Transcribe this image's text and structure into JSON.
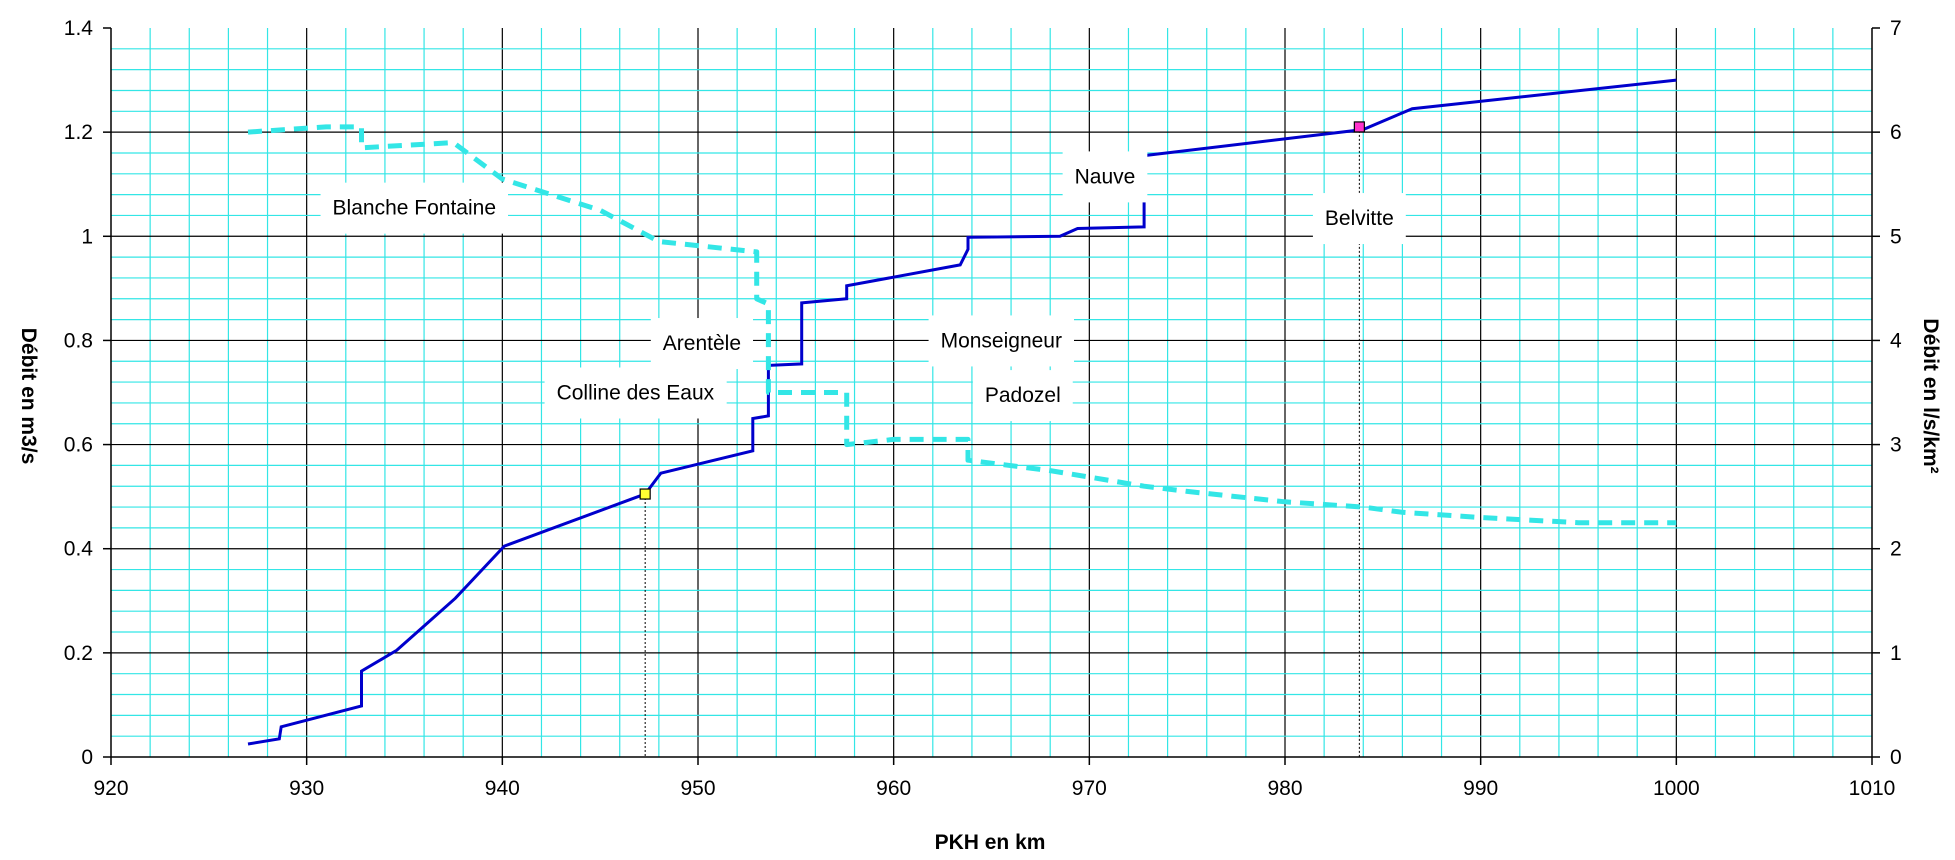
{
  "chart_data": {
    "type": "line",
    "xlabel": "PKH en km",
    "ylabel": "Débit en m3/s",
    "y2label": "Débit en l/s/km²",
    "xlim": [
      920,
      1010
    ],
    "ylim": [
      0,
      1.4
    ],
    "y2lim": [
      0,
      7
    ],
    "xticks": [
      "920",
      "930",
      "940",
      "950",
      "960",
      "970",
      "980",
      "990",
      "1000",
      "1010"
    ],
    "yticks": [
      "0",
      "0.2",
      "0.4",
      "0.6",
      "0.8",
      "1",
      "1.2",
      "1.4"
    ],
    "y2ticks": [
      "0",
      "1",
      "2",
      "3",
      "4",
      "5",
      "6",
      "7"
    ],
    "grid": true,
    "colors": {
      "flow": "#0000cc",
      "specific": "#33e6e6",
      "grid_minor": "#33e6e6",
      "grid_major": "#000000",
      "marker_yellow": "#ffff33",
      "marker_pink": "#ff33cc"
    },
    "series": [
      {
        "axis": "left",
        "style": "solid",
        "x": [
          927,
          928.6,
          928.7,
          932.8,
          932.8,
          934.6,
          937.6,
          940.1,
          947.3,
          948.1,
          952.8,
          952.8,
          953.6,
          953.6,
          955.3,
          955.3,
          957.6,
          957.6,
          963.4,
          963.8,
          963.8,
          968.5,
          969.4,
          972.8,
          972.8,
          984,
          986.5,
          1000
        ],
        "y": [
          0.025,
          0.035,
          0.058,
          0.098,
          0.165,
          0.205,
          0.305,
          0.405,
          0.505,
          0.545,
          0.588,
          0.65,
          0.655,
          0.752,
          0.755,
          0.872,
          0.88,
          0.905,
          0.945,
          0.975,
          0.998,
          1.0,
          1.015,
          1.018,
          1.155,
          1.205,
          1.245,
          1.3
        ]
      },
      {
        "axis": "right",
        "style": "dashed",
        "x": [
          927,
          931,
          932.8,
          932.8,
          937.5,
          940,
          945,
          948,
          953,
          953,
          953.6,
          953.6,
          955.5,
          957.6,
          957.6,
          960,
          963.8,
          963.8,
          968,
          972.8,
          975,
          980,
          984,
          986,
          990,
          995,
          1000
        ],
        "y": [
          6.0,
          6.05,
          6.05,
          5.85,
          5.9,
          5.55,
          5.25,
          4.95,
          4.85,
          4.4,
          4.35,
          3.5,
          3.5,
          3.5,
          3.0,
          3.05,
          3.05,
          2.85,
          2.75,
          2.6,
          2.55,
          2.45,
          2.4,
          2.35,
          2.3,
          2.25,
          2.25
        ]
      }
    ],
    "markers": [
      {
        "x": 947.3,
        "y": 0.505,
        "color": "#ffff33"
      },
      {
        "x": 983.8,
        "y": 1.21,
        "color": "#ff33cc"
      }
    ],
    "annotations": [
      {
        "text": "Blanche Fontaine",
        "x": 935.5,
        "y": 1.055
      },
      {
        "text": "Nauve",
        "x": 970.8,
        "y": 1.115
      },
      {
        "text": "Belvitte",
        "x": 983.8,
        "y": 1.035
      },
      {
        "text": "Arentèle",
        "x": 950.2,
        "y": 0.795
      },
      {
        "text": "Monseigneur",
        "x": 965.5,
        "y": 0.8
      },
      {
        "text": "Colline des Eaux",
        "x": 946.8,
        "y": 0.7
      },
      {
        "text": "Padozel",
        "x": 966.6,
        "y": 0.695
      }
    ],
    "droplines": [
      {
        "x": 947.3,
        "y": 0.505
      },
      {
        "x": 983.8,
        "y": 1.21
      }
    ]
  }
}
